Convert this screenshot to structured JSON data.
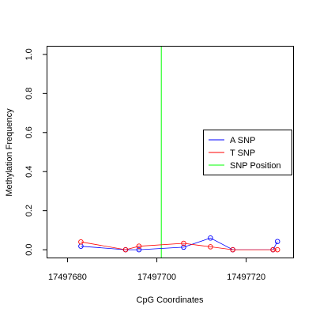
{
  "chart_data": {
    "type": "line",
    "title": "",
    "xlabel": "CpG Coordinates",
    "ylabel": "Methylation Frequency",
    "xlim": [
      17497675.5,
      17497730.5
    ],
    "ylim": [
      -0.04,
      1.04
    ],
    "x_ticks": [
      17497680,
      17497700,
      17497720
    ],
    "y_ticks": [
      0.0,
      0.2,
      0.4,
      0.6,
      0.8,
      1.0
    ],
    "x_tick_labels": [
      "17497680",
      "17497700",
      "17497720"
    ],
    "y_tick_labels": [
      "0.0",
      "0.2",
      "0.4",
      "0.6",
      "0.8",
      "1.0"
    ],
    "series": [
      {
        "name": "A SNP",
        "color": "#0000ff",
        "marker": "open-circle",
        "x": [
          17497683,
          17497693,
          17497696,
          17497706,
          17497712,
          17497717,
          17497726,
          17497727
        ],
        "y": [
          0.018,
          0.0,
          0.0,
          0.013,
          0.06,
          0.0,
          0.0,
          0.042
        ]
      },
      {
        "name": "T SNP",
        "color": "#ff0000",
        "marker": "open-circle",
        "x": [
          17497683,
          17497693,
          17497696,
          17497706,
          17497712,
          17497717,
          17497726,
          17497727
        ],
        "y": [
          0.04,
          0.0,
          0.018,
          0.033,
          0.015,
          0.0,
          0.0,
          0.0
        ]
      }
    ],
    "snp_position": {
      "name": "SNP Position",
      "x": 17497701,
      "color": "#00ff00"
    },
    "legend": {
      "placement": "right",
      "entries": [
        {
          "label": "A SNP",
          "color": "#0000ff"
        },
        {
          "label": "T SNP",
          "color": "#ff0000"
        },
        {
          "label": "SNP Position",
          "color": "#00ff00"
        }
      ]
    },
    "grid": false
  }
}
